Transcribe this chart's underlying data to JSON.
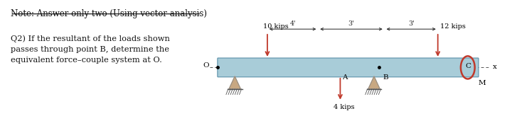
{
  "page_bg": "#ffffff",
  "title": "Note: Answer only two (Using vector analysis)",
  "question": "Q2) If the resultant of the loads shown\npasses through point B, determine the\nequivalent force–couple system at O.",
  "label_10": "10 kips",
  "label_12": "12 kips",
  "label_4": "4 kips",
  "dim_4ft": "4'",
  "dim_3ft_1": "3'",
  "dim_3ft_2": "3'",
  "label_O": "O",
  "label_A": "A",
  "label_B": "B",
  "label_C": "C",
  "label_x": "x",
  "label_M": "M",
  "arrow_color": "#c0392b",
  "dashed_color": "#555555",
  "beam_fill": "#a8ccd8",
  "beam_edge": "#5a8fa8",
  "support_fill": "#c8a882",
  "text_color": "#111111"
}
